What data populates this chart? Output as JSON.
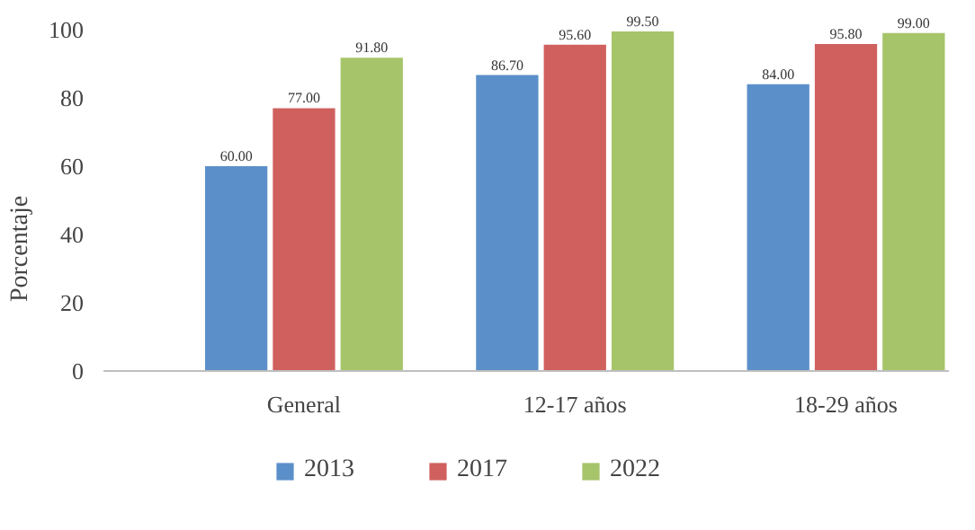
{
  "chart_data": {
    "type": "bar",
    "ylabel": "Porcentaje",
    "categories": [
      "General",
      "12-17 años",
      "18-29 años"
    ],
    "series": [
      {
        "name": "2013",
        "color": "#5b8fc9",
        "values": [
          60.0,
          86.7,
          84.0
        ],
        "value_labels": [
          "60.00",
          "86.70",
          "84.00"
        ]
      },
      {
        "name": "2017",
        "color": "#d0605e",
        "values": [
          77.0,
          95.6,
          95.8
        ],
        "value_labels": [
          "77.00",
          "95.60",
          "95.80"
        ]
      },
      {
        "name": "2022",
        "color": "#a6c46a",
        "values": [
          91.8,
          99.5,
          99.0
        ],
        "value_labels": [
          "91.80",
          "99.50",
          "99.00"
        ]
      }
    ],
    "ylim": [
      0,
      100
    ],
    "yticks": [
      0,
      20,
      40,
      60,
      80,
      100
    ],
    "grid": false,
    "legend": "bottom"
  }
}
